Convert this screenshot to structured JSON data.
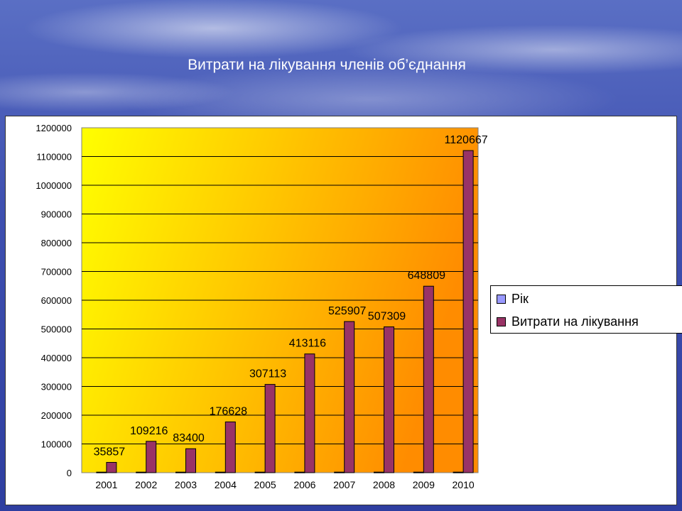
{
  "slide": {
    "title": "Витрати на лікування членів об’єднання"
  },
  "colors": {
    "series_rik": "#9999ff",
    "series_vytraty": "#993366",
    "plot_gradient_light": "#ffff00",
    "plot_gradient_dark": "#ff8c00"
  },
  "legend": {
    "items": [
      {
        "label": "Рік",
        "color": "#9999ff"
      },
      {
        "label": "Витрати на лікування",
        "color": "#993366"
      }
    ]
  },
  "chart_data": {
    "type": "bar",
    "title": "",
    "xlabel": "",
    "ylabel": "",
    "ylim": [
      0,
      1200000
    ],
    "yticks": [
      0,
      100000,
      200000,
      300000,
      400000,
      500000,
      600000,
      700000,
      800000,
      900000,
      1000000,
      1100000,
      1200000
    ],
    "categories": [
      "2001",
      "2002",
      "2003",
      "2004",
      "2005",
      "2006",
      "2007",
      "2008",
      "2009",
      "2010"
    ],
    "grid": true,
    "legend_position": "right",
    "series": [
      {
        "name": "Рік",
        "values": [
          2001,
          2002,
          2003,
          2004,
          2005,
          2006,
          2007,
          2008,
          2009,
          2010
        ]
      },
      {
        "name": "Витрати на лікування",
        "values": [
          35857,
          109216,
          83400,
          176628,
          307113,
          413116,
          525907,
          507309,
          648809,
          1120667
        ]
      }
    ],
    "data_labels": [
      "35857",
      "109216",
      "83400",
      "176628",
      "307113",
      "413116",
      "525907",
      "507309",
      "648809",
      "1120667"
    ]
  }
}
